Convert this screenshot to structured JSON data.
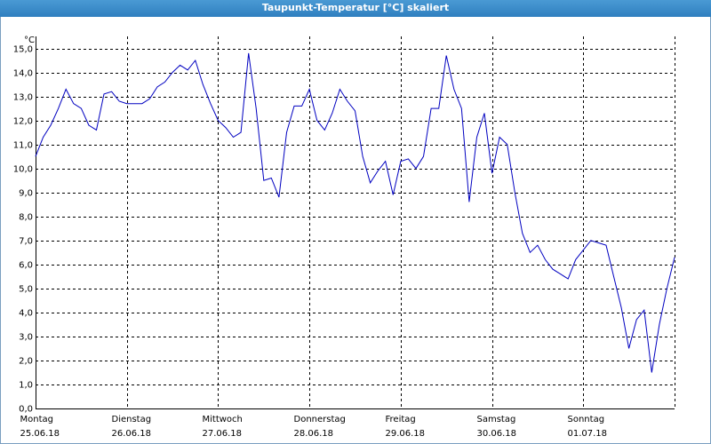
{
  "window_title": "Taupunkt-Temperatur [°C] skaliert",
  "chart_data": {
    "type": "line",
    "y_unit": "°C",
    "days": [
      {
        "weekday": "Montag",
        "date": "25.06.18"
      },
      {
        "weekday": "Dienstag",
        "date": "26.06.18"
      },
      {
        "weekday": "Mittwoch",
        "date": "27.06.18"
      },
      {
        "weekday": "Donnerstag",
        "date": "28.06.18"
      },
      {
        "weekday": "Freitag",
        "date": "29.06.18"
      },
      {
        "weekday": "Samstag",
        "date": "30.06.18"
      },
      {
        "weekday": "Sonntag",
        "date": "01.07.18"
      }
    ],
    "color": "#0000c0",
    "values": [
      10.5,
      11.3,
      11.8,
      12.5,
      13.3,
      12.7,
      12.5,
      11.8,
      11.6,
      13.1,
      13.2,
      12.8,
      12.7,
      12.7,
      12.7,
      12.9,
      13.4,
      13.6,
      14.0,
      14.3,
      14.1,
      14.5,
      13.5,
      12.7,
      12.0,
      11.7,
      11.3,
      11.5,
      14.8,
      12.5,
      9.5,
      9.6,
      8.8,
      11.5,
      12.6,
      12.6,
      13.3,
      12.0,
      11.6,
      12.3,
      13.3,
      12.8,
      12.4,
      10.5,
      9.4,
      9.9,
      10.3,
      8.9,
      10.3,
      10.4,
      10.0,
      10.5,
      12.5,
      12.5,
      14.7,
      13.3,
      12.5,
      8.6,
      11.3,
      12.3,
      9.8,
      11.3,
      11.0,
      9.0,
      7.3,
      6.5,
      6.8,
      6.2,
      5.8,
      5.6,
      5.4,
      6.2,
      6.6,
      7.0,
      6.9,
      6.8,
      5.5,
      4.2,
      2.5,
      3.7,
      4.1,
      1.5,
      3.5,
      5.0,
      6.3
    ],
    "ylim": [
      0,
      15.5
    ],
    "yticks": [
      {
        "value": 0,
        "label": "0,0"
      },
      {
        "value": 1,
        "label": "1,0"
      },
      {
        "value": 2,
        "label": "2,0"
      },
      {
        "value": 3,
        "label": "3,0"
      },
      {
        "value": 4,
        "label": "4,0"
      },
      {
        "value": 5,
        "label": "5,0"
      },
      {
        "value": 6,
        "label": "6,0"
      },
      {
        "value": 7,
        "label": "7,0"
      },
      {
        "value": 8,
        "label": "8,0"
      },
      {
        "value": 9,
        "label": "9,0"
      },
      {
        "value": 10,
        "label": "10,0"
      },
      {
        "value": 11,
        "label": "11,0"
      },
      {
        "value": 12,
        "label": "12,0"
      },
      {
        "value": 13,
        "label": "13,0"
      },
      {
        "value": 14,
        "label": "14,0"
      },
      {
        "value": 15,
        "label": "15,0"
      }
    ],
    "grid": true
  }
}
